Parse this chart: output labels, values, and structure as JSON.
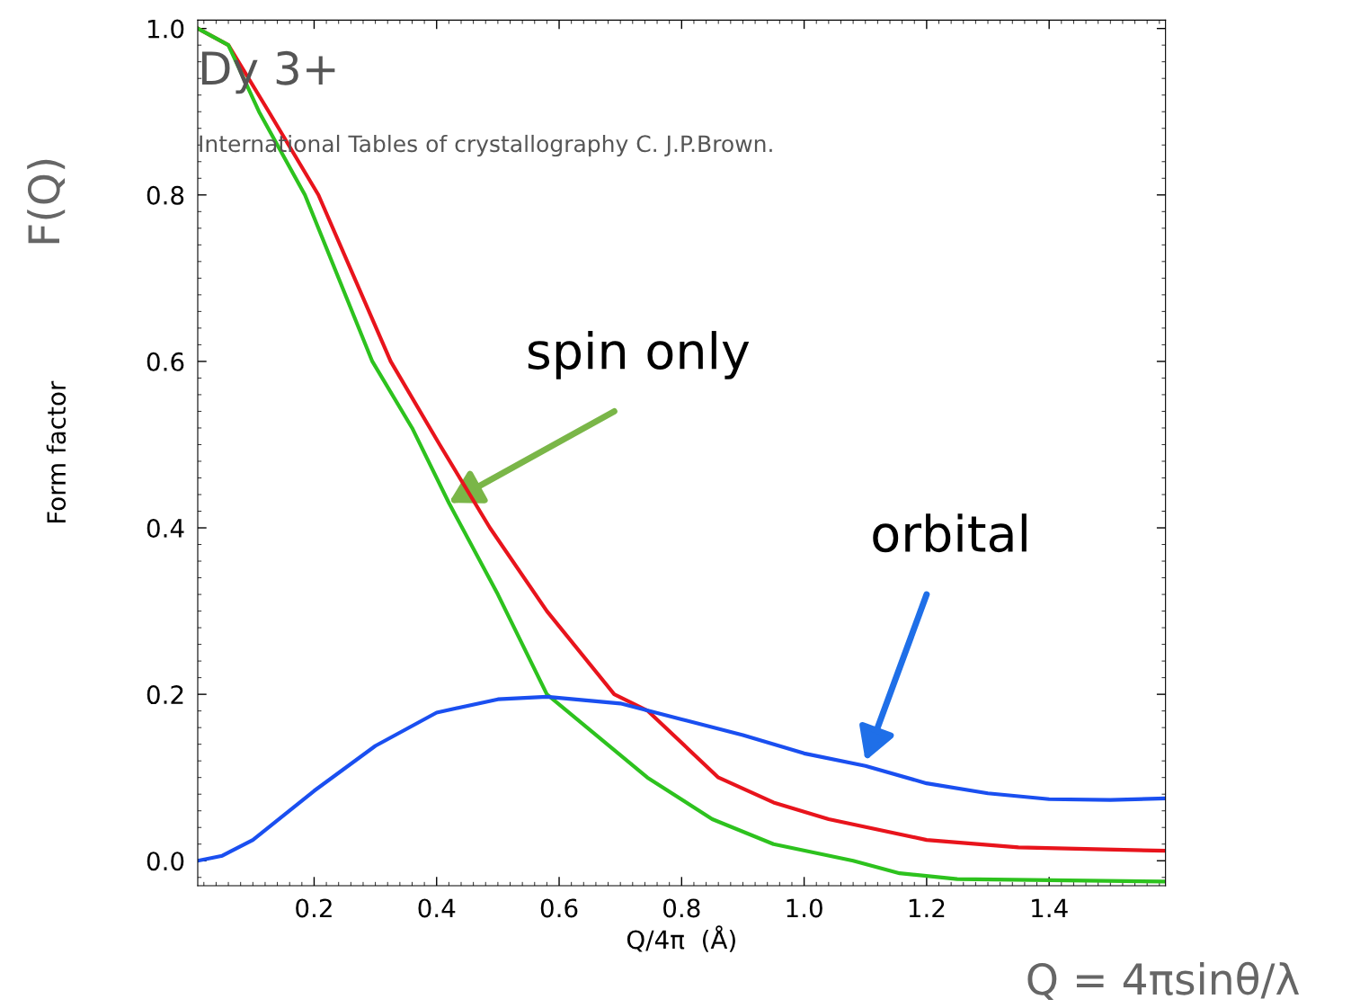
{
  "chart_data": {
    "type": "line",
    "xlabel": "Q/4π  (Å)",
    "ylabel": "Form factor",
    "xlim": [
      0.01,
      1.59
    ],
    "ylim": [
      -0.03,
      1.01
    ],
    "xticks": [
      0.2,
      0.4,
      0.6,
      0.8,
      {
        "value": 1.0,
        "label": "1.0"
      },
      1.2,
      1.4
    ],
    "yticks": [
      {
        "value": 0.0,
        "label": "0.0"
      },
      0.2,
      0.4,
      0.6,
      0.8,
      {
        "value": 1.0,
        "label": "1.0"
      }
    ],
    "grid": false,
    "legend": false,
    "marker": "none",
    "line_style": "solid",
    "series": [
      {
        "color": "#e8141c",
        "x": [
          0.01,
          0.06,
          0.126,
          0.207,
          0.325,
          0.405,
          0.487,
          0.58,
          0.69,
          0.745,
          0.86,
          0.95,
          1.04,
          1.2,
          1.35,
          1.59
        ],
        "values": [
          1.0,
          0.98,
          0.9,
          0.8,
          0.6,
          0.5,
          0.4,
          0.3,
          0.2,
          0.18,
          0.1,
          0.07,
          0.05,
          0.025,
          0.016,
          0.012
        ]
      },
      {
        "color": "#2dc21e",
        "x": [
          0.01,
          0.06,
          0.11,
          0.185,
          0.295,
          0.36,
          0.42,
          0.5,
          0.58,
          0.744,
          0.85,
          0.95,
          1.08,
          1.156,
          1.25,
          1.59
        ],
        "values": [
          1.0,
          0.98,
          0.9,
          0.8,
          0.6,
          0.52,
          0.43,
          0.32,
          0.2,
          0.1,
          0.05,
          0.02,
          0.0,
          -0.015,
          -0.022,
          -0.025
        ]
      },
      {
        "color": "#1a4ff0",
        "x": [
          0.01,
          0.05,
          0.1,
          0.2,
          0.3,
          0.4,
          0.5,
          0.58,
          0.7,
          0.8,
          0.9,
          1.0,
          1.1,
          1.2,
          1.3,
          1.4,
          1.5,
          1.59
        ],
        "values": [
          0.0,
          0.006,
          0.025,
          0.084,
          0.138,
          0.178,
          0.194,
          0.197,
          0.189,
          0.17,
          0.151,
          0.129,
          0.114,
          0.093,
          0.081,
          0.074,
          0.073,
          0.075
        ]
      }
    ],
    "annotations": [
      "Dy 3+",
      "International Tables of crystallography C. J.P.Brown.",
      "spin only",
      "orbital",
      "F(Q)",
      "Q = 4πsinθ/λ"
    ]
  }
}
